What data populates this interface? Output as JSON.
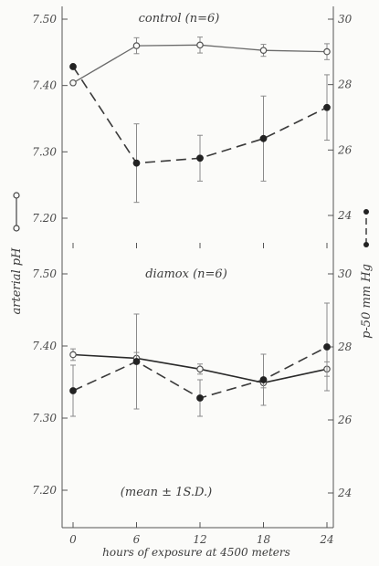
{
  "chart_data": [
    {
      "type": "line",
      "panel_title": "control (n=6)",
      "x": [
        0,
        6,
        12,
        18,
        24
      ],
      "left_ylim": [
        7.15,
        7.52
      ],
      "right_ylim": [
        23,
        30.3
      ],
      "left_ticks": [
        "7.50",
        "7.40",
        "7.30",
        "7.20"
      ],
      "right_ticks": [
        "30",
        "28",
        "26",
        "24"
      ],
      "series": [
        {
          "axis": "left",
          "marker": "open",
          "style": "solid",
          "values": [
            7.404,
            7.46,
            7.461,
            7.453,
            7.451
          ],
          "err": [
            0,
            0.012,
            0.012,
            0.009,
            0.012
          ]
        },
        {
          "axis": "right",
          "marker": "filled",
          "style": "dashed",
          "values": [
            28.55,
            25.6,
            25.75,
            26.35,
            27.3
          ],
          "err": [
            0,
            1.2,
            0.7,
            1.3,
            1.0
          ]
        }
      ]
    },
    {
      "type": "line",
      "panel_title": "diamox (n=6)",
      "note": "(mean ± 1S.D.)",
      "x": [
        0,
        6,
        12,
        18,
        24
      ],
      "left_ylim": [
        7.15,
        7.52
      ],
      "right_ylim": [
        23,
        30.3
      ],
      "left_ticks": [
        "7.50",
        "7.40",
        "7.30",
        "7.20"
      ],
      "right_ticks": [
        "30",
        "28",
        "26",
        "24"
      ],
      "series": [
        {
          "axis": "left",
          "marker": "open",
          "style": "solid",
          "values": [
            7.388,
            7.383,
            7.368,
            7.349,
            7.368
          ],
          "err": [
            0.008,
            0.008,
            0.007,
            0.007,
            0.01
          ]
        },
        {
          "axis": "right",
          "marker": "filled",
          "style": "dashed",
          "values": [
            26.8,
            27.6,
            26.6,
            27.1,
            28.0
          ],
          "err": [
            0.7,
            1.3,
            0.5,
            0.7,
            1.2
          ]
        }
      ]
    }
  ],
  "labels": {
    "xlabel": "hours of exposure at 4500 meters",
    "ylabel_left": "arterial pH",
    "ylabel_right": "p-50 mm Hg",
    "x_ticks": [
      "0",
      "6",
      "12",
      "18",
      "24"
    ]
  }
}
